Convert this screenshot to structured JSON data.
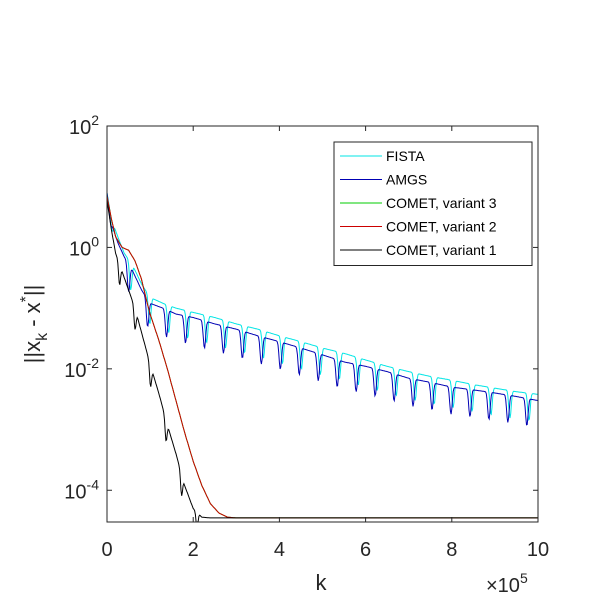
{
  "chart_data": {
    "type": "line",
    "xlabel": "k",
    "ylabel": "||x_k - x^*||",
    "x_multiplier": "×10^5",
    "xlim": [
      0,
      10
    ],
    "ylim": [
      3e-05,
      100
    ],
    "y_scale": "log",
    "x_ticks": [
      "0",
      "2",
      "4",
      "6",
      "8",
      "10"
    ],
    "y_ticks": [
      {
        "value": 100,
        "base": "10",
        "exp": "2"
      },
      {
        "value": 1,
        "base": "10",
        "exp": "0"
      },
      {
        "value": 0.01,
        "base": "10",
        "exp": "-2"
      },
      {
        "value": 0.0001,
        "base": "10",
        "exp": "-4"
      }
    ],
    "legend_position": "top-right",
    "grid": false,
    "series": [
      {
        "name": "FISTA",
        "color": "#00e5e5",
        "x": [
          0,
          0.1,
          0.25,
          0.4,
          0.6,
          0.8,
          1.0,
          1.3,
          1.6,
          2.0,
          2.5,
          3.0,
          3.5,
          4.0,
          4.5,
          5.0,
          5.5,
          6.0,
          6.5,
          7.0,
          7.5,
          8.0,
          8.5,
          9.0,
          9.5,
          10.0
        ],
        "y": [
          8,
          3,
          1.5,
          0.8,
          0.5,
          0.25,
          0.15,
          0.12,
          0.1,
          0.085,
          0.07,
          0.055,
          0.045,
          0.035,
          0.028,
          0.022,
          0.018,
          0.014,
          0.011,
          0.009,
          0.0075,
          0.0065,
          0.0055,
          0.0048,
          0.0042,
          0.0038
        ],
        "oscillating": true
      },
      {
        "name": "AMGS",
        "color": "#0000b4",
        "x": [
          0,
          0.1,
          0.25,
          0.4,
          0.6,
          0.8,
          1.0,
          1.3,
          1.6,
          2.0,
          2.5,
          3.0,
          3.5,
          4.0,
          4.5,
          5.0,
          5.5,
          6.0,
          6.5,
          7.0,
          7.5,
          8.0,
          8.5,
          9.0,
          9.5,
          10.0
        ],
        "y": [
          8,
          2.5,
          1.2,
          0.7,
          0.4,
          0.2,
          0.12,
          0.1,
          0.08,
          0.07,
          0.055,
          0.045,
          0.035,
          0.028,
          0.022,
          0.017,
          0.013,
          0.011,
          0.009,
          0.007,
          0.006,
          0.005,
          0.0045,
          0.004,
          0.0035,
          0.003
        ],
        "oscillating": true
      },
      {
        "name": "COMET, variant 3",
        "color": "#00cc00",
        "x": [
          0,
          0.1,
          0.2,
          0.35,
          0.5,
          0.65,
          0.8,
          0.9,
          1.0,
          1.2,
          1.4,
          1.6,
          1.8,
          2.0,
          2.2,
          2.4,
          2.6,
          2.8,
          3.0,
          3.5,
          4.0,
          10.0
        ],
        "y": [
          7,
          3,
          1.5,
          1.0,
          0.9,
          0.6,
          0.3,
          0.15,
          0.08,
          0.03,
          0.01,
          0.003,
          0.0009,
          0.0003,
          0.00012,
          6e-05,
          4.2e-05,
          3.6e-05,
          3.5e-05,
          3.5e-05,
          3.5e-05,
          3.5e-05
        ]
      },
      {
        "name": "COMET, variant 2",
        "color": "#cc0000",
        "x": [
          0,
          0.1,
          0.2,
          0.35,
          0.5,
          0.65,
          0.8,
          0.9,
          1.0,
          1.2,
          1.4,
          1.6,
          1.8,
          2.0,
          2.2,
          2.4,
          2.6,
          2.8,
          3.0,
          3.5,
          4.0,
          10.0
        ],
        "y": [
          7,
          3,
          1.5,
          1.0,
          0.9,
          0.6,
          0.3,
          0.15,
          0.08,
          0.03,
          0.01,
          0.003,
          0.0009,
          0.0003,
          0.00012,
          6e-05,
          4.2e-05,
          3.6e-05,
          3.5e-05,
          3.5e-05,
          3.5e-05,
          3.5e-05
        ]
      },
      {
        "name": "COMET, variant 1",
        "color": "#000000",
        "x": [
          0,
          0.1,
          0.2,
          0.35,
          0.5,
          0.65,
          0.8,
          1.0,
          1.2,
          1.4,
          1.6,
          1.8,
          2.0,
          2.2,
          2.4,
          2.6,
          3.0,
          10.0
        ],
        "y": [
          6,
          2,
          0.8,
          0.4,
          0.2,
          0.1,
          0.04,
          0.012,
          0.004,
          0.0012,
          0.0004,
          0.00012,
          5e-05,
          3.6e-05,
          3.5e-05,
          3.5e-05,
          3.5e-05,
          3.5e-05
        ],
        "oscillating": true
      }
    ]
  }
}
